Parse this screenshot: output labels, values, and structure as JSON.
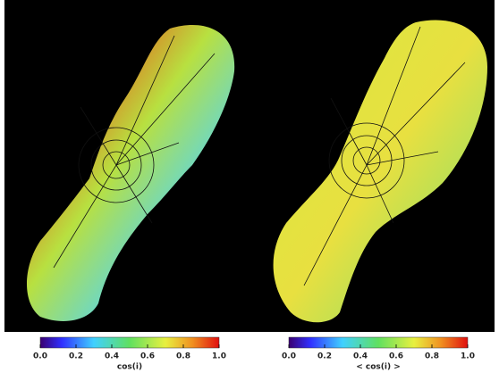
{
  "panels": [
    {
      "colorbar": {
        "label": "cos(i)",
        "ticks": [
          {
            "value": 0,
            "label": "0.0"
          },
          {
            "value": 0.2,
            "label": "0.2"
          },
          {
            "value": 0.4,
            "label": "0.4"
          },
          {
            "value": 0.6,
            "label": "0.6"
          },
          {
            "value": 0.8,
            "label": "0.8"
          },
          {
            "value": 1,
            "label": "1.0"
          }
        ]
      }
    },
    {
      "colorbar": {
        "label": "< cos(i) >",
        "ticks": [
          {
            "value": 0,
            "label": "0.0"
          },
          {
            "value": 0.2,
            "label": "0.2"
          },
          {
            "value": 0.4,
            "label": "0.4"
          },
          {
            "value": 0.6,
            "label": "0.6"
          },
          {
            "value": 0.8,
            "label": "0.8"
          },
          {
            "value": 1,
            "label": "1.0"
          }
        ]
      }
    }
  ]
}
